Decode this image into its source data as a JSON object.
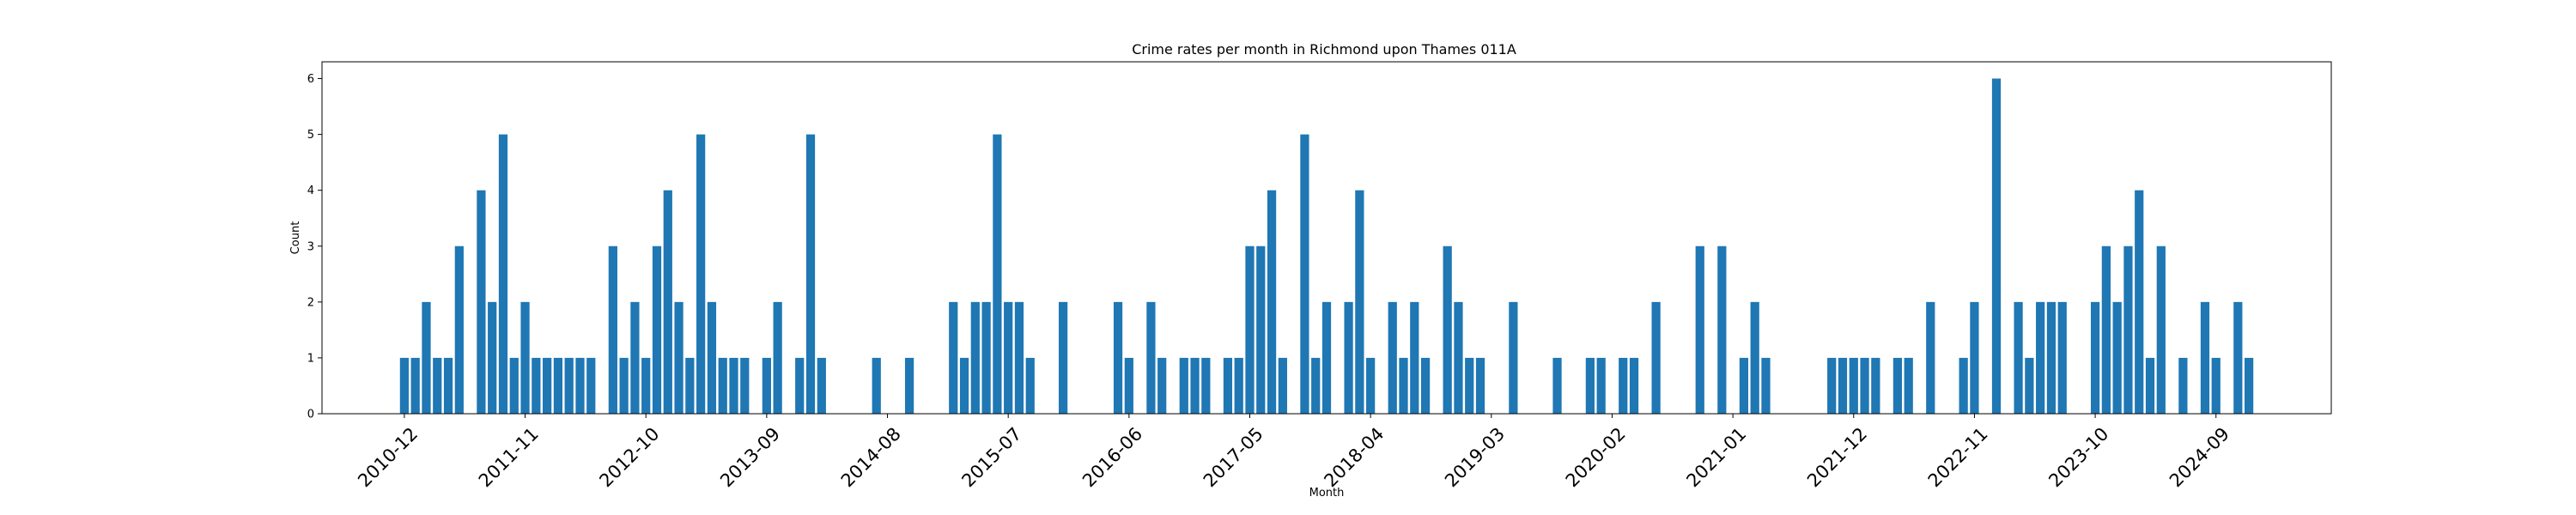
{
  "chart_data": {
    "type": "bar",
    "title": "Crime rates per month in Richmond upon Thames 011A",
    "xlabel": "Month",
    "ylabel": "Count",
    "ylim": [
      0,
      6.3
    ],
    "yticks": [
      0,
      1,
      2,
      3,
      4,
      5,
      6
    ],
    "xticks": [
      "2010-12",
      "2011-11",
      "2012-10",
      "2013-09",
      "2014-08",
      "2015-07",
      "2016-06",
      "2017-05",
      "2018-04",
      "2019-03",
      "2020-02",
      "2021-01",
      "2021-12",
      "2022-11",
      "2023-10",
      "2024-09"
    ],
    "bar_color": "#1f77b4",
    "grid": false,
    "series": [
      {
        "values": [
          {
            "x": "2010-12",
            "y": 1
          },
          {
            "x": "2011-01",
            "y": 1
          },
          {
            "x": "2011-02",
            "y": 2
          },
          {
            "x": "2011-03",
            "y": 1
          },
          {
            "x": "2011-04",
            "y": 1
          },
          {
            "x": "2011-05",
            "y": 3
          },
          {
            "x": "2011-07",
            "y": 4
          },
          {
            "x": "2011-08",
            "y": 2
          },
          {
            "x": "2011-09",
            "y": 5
          },
          {
            "x": "2011-10",
            "y": 1
          },
          {
            "x": "2011-11",
            "y": 2
          },
          {
            "x": "2011-12",
            "y": 1
          },
          {
            "x": "2012-01",
            "y": 1
          },
          {
            "x": "2012-02",
            "y": 1
          },
          {
            "x": "2012-03",
            "y": 1
          },
          {
            "x": "2012-04",
            "y": 1
          },
          {
            "x": "2012-05",
            "y": 1
          },
          {
            "x": "2012-07",
            "y": 3
          },
          {
            "x": "2012-08",
            "y": 1
          },
          {
            "x": "2012-09",
            "y": 2
          },
          {
            "x": "2012-10",
            "y": 1
          },
          {
            "x": "2012-11",
            "y": 3
          },
          {
            "x": "2012-12",
            "y": 4
          },
          {
            "x": "2013-01",
            "y": 2
          },
          {
            "x": "2013-02",
            "y": 1
          },
          {
            "x": "2013-03",
            "y": 5
          },
          {
            "x": "2013-04",
            "y": 2
          },
          {
            "x": "2013-05",
            "y": 1
          },
          {
            "x": "2013-06",
            "y": 1
          },
          {
            "x": "2013-07",
            "y": 1
          },
          {
            "x": "2013-09",
            "y": 1
          },
          {
            "x": "2013-10",
            "y": 2
          },
          {
            "x": "2013-12",
            "y": 1
          },
          {
            "x": "2014-01",
            "y": 5
          },
          {
            "x": "2014-02",
            "y": 1
          },
          {
            "x": "2014-07",
            "y": 1
          },
          {
            "x": "2014-10",
            "y": 1
          },
          {
            "x": "2015-02",
            "y": 2
          },
          {
            "x": "2015-03",
            "y": 1
          },
          {
            "x": "2015-04",
            "y": 2
          },
          {
            "x": "2015-05",
            "y": 2
          },
          {
            "x": "2015-06",
            "y": 5
          },
          {
            "x": "2015-07",
            "y": 2
          },
          {
            "x": "2015-08",
            "y": 2
          },
          {
            "x": "2015-09",
            "y": 1
          },
          {
            "x": "2015-12",
            "y": 2
          },
          {
            "x": "2016-05",
            "y": 2
          },
          {
            "x": "2016-06",
            "y": 1
          },
          {
            "x": "2016-08",
            "y": 2
          },
          {
            "x": "2016-09",
            "y": 1
          },
          {
            "x": "2016-11",
            "y": 1
          },
          {
            "x": "2016-12",
            "y": 1
          },
          {
            "x": "2017-01",
            "y": 1
          },
          {
            "x": "2017-03",
            "y": 1
          },
          {
            "x": "2017-04",
            "y": 1
          },
          {
            "x": "2017-05",
            "y": 3
          },
          {
            "x": "2017-06",
            "y": 3
          },
          {
            "x": "2017-07",
            "y": 4
          },
          {
            "x": "2017-08",
            "y": 1
          },
          {
            "x": "2017-10",
            "y": 5
          },
          {
            "x": "2017-11",
            "y": 1
          },
          {
            "x": "2017-12",
            "y": 2
          },
          {
            "x": "2018-02",
            "y": 2
          },
          {
            "x": "2018-03",
            "y": 4
          },
          {
            "x": "2018-04",
            "y": 1
          },
          {
            "x": "2018-06",
            "y": 2
          },
          {
            "x": "2018-07",
            "y": 1
          },
          {
            "x": "2018-08",
            "y": 2
          },
          {
            "x": "2018-09",
            "y": 1
          },
          {
            "x": "2018-11",
            "y": 3
          },
          {
            "x": "2018-12",
            "y": 2
          },
          {
            "x": "2019-01",
            "y": 1
          },
          {
            "x": "2019-02",
            "y": 1
          },
          {
            "x": "2019-05",
            "y": 2
          },
          {
            "x": "2019-09",
            "y": 1
          },
          {
            "x": "2019-12",
            "y": 1
          },
          {
            "x": "2020-01",
            "y": 1
          },
          {
            "x": "2020-03",
            "y": 1
          },
          {
            "x": "2020-04",
            "y": 1
          },
          {
            "x": "2020-06",
            "y": 2
          },
          {
            "x": "2020-10",
            "y": 3
          },
          {
            "x": "2020-12",
            "y": 3
          },
          {
            "x": "2021-02",
            "y": 1
          },
          {
            "x": "2021-03",
            "y": 2
          },
          {
            "x": "2021-04",
            "y": 1
          },
          {
            "x": "2021-10",
            "y": 1
          },
          {
            "x": "2021-11",
            "y": 1
          },
          {
            "x": "2021-12",
            "y": 1
          },
          {
            "x": "2022-01",
            "y": 1
          },
          {
            "x": "2022-02",
            "y": 1
          },
          {
            "x": "2022-04",
            "y": 1
          },
          {
            "x": "2022-05",
            "y": 1
          },
          {
            "x": "2022-07",
            "y": 2
          },
          {
            "x": "2022-10",
            "y": 1
          },
          {
            "x": "2022-11",
            "y": 2
          },
          {
            "x": "2023-01",
            "y": 6
          },
          {
            "x": "2023-03",
            "y": 2
          },
          {
            "x": "2023-04",
            "y": 1
          },
          {
            "x": "2023-05",
            "y": 2
          },
          {
            "x": "2023-06",
            "y": 2
          },
          {
            "x": "2023-07",
            "y": 2
          },
          {
            "x": "2023-10",
            "y": 2
          },
          {
            "x": "2023-11",
            "y": 3
          },
          {
            "x": "2023-12",
            "y": 2
          },
          {
            "x": "2024-01",
            "y": 3
          },
          {
            "x": "2024-02",
            "y": 4
          },
          {
            "x": "2024-03",
            "y": 1
          },
          {
            "x": "2024-04",
            "y": 3
          },
          {
            "x": "2024-06",
            "y": 1
          },
          {
            "x": "2024-08",
            "y": 2
          },
          {
            "x": "2024-09",
            "y": 1
          },
          {
            "x": "2024-11",
            "y": 2
          },
          {
            "x": "2024-12",
            "y": 1
          }
        ]
      }
    ]
  }
}
